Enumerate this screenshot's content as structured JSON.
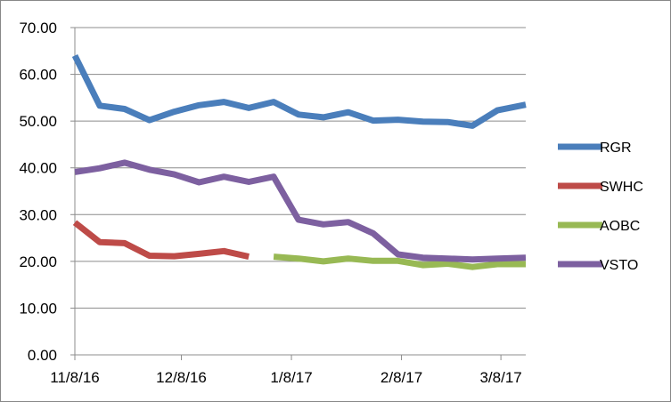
{
  "chart_data": {
    "type": "line",
    "title": "",
    "xlabel": "",
    "ylabel": "",
    "ylim": [
      0,
      70
    ],
    "y_ticks": [
      "0.00",
      "10.00",
      "20.00",
      "30.00",
      "40.00",
      "50.00",
      "60.00",
      "70.00"
    ],
    "x_tick_labels": [
      {
        "label": "11/8/16",
        "date": "2016-11-08"
      },
      {
        "label": "12/8/16",
        "date": "2016-12-08"
      },
      {
        "label": "1/8/17",
        "date": "2017-01-08"
      },
      {
        "label": "2/8/17",
        "date": "2017-02-08"
      },
      {
        "label": "3/8/17",
        "date": "2017-03-08"
      }
    ],
    "x_range": [
      "2016-11-08",
      "2017-03-15"
    ],
    "grid": "horizontal",
    "legend": "right",
    "series": [
      {
        "name": "RGR",
        "color": "#4a7ebb",
        "x": [
          "2016-11-08",
          "2016-11-15",
          "2016-11-22",
          "2016-11-29",
          "2016-12-06",
          "2016-12-13",
          "2016-12-20",
          "2016-12-27",
          "2017-01-03",
          "2017-01-10",
          "2017-01-17",
          "2017-01-24",
          "2017-01-31",
          "2017-02-07",
          "2017-02-14",
          "2017-02-21",
          "2017-02-28",
          "2017-03-07",
          "2017-03-15"
        ],
        "y": [
          64.0,
          53.3,
          52.6,
          50.2,
          52.0,
          53.4,
          54.1,
          52.8,
          54.1,
          51.4,
          50.8,
          51.9,
          50.1,
          50.3,
          49.9,
          49.8,
          49.0,
          52.3,
          53.5
        ]
      },
      {
        "name": "SWHC",
        "color": "#be4b48",
        "x": [
          "2016-11-08",
          "2016-11-15",
          "2016-11-22",
          "2016-11-29",
          "2016-12-06",
          "2016-12-13",
          "2016-12-20",
          "2016-12-27"
        ],
        "y": [
          28.3,
          24.1,
          23.9,
          21.2,
          21.1,
          21.6,
          22.2,
          21.0
        ]
      },
      {
        "name": "AOBC",
        "color": "#98b954",
        "x": [
          "2017-01-03",
          "2017-01-10",
          "2017-01-17",
          "2017-01-24",
          "2017-01-31",
          "2017-02-07",
          "2017-02-14",
          "2017-02-21",
          "2017-02-28",
          "2017-03-07",
          "2017-03-15"
        ],
        "y": [
          21.0,
          20.6,
          20.0,
          20.6,
          20.1,
          20.1,
          19.2,
          19.5,
          18.8,
          19.4,
          19.4
        ]
      },
      {
        "name": "VSTO",
        "color": "#7d60a0",
        "x": [
          "2016-11-08",
          "2016-11-15",
          "2016-11-22",
          "2016-11-29",
          "2016-12-06",
          "2016-12-13",
          "2016-12-20",
          "2016-12-27",
          "2017-01-03",
          "2017-01-10",
          "2017-01-17",
          "2017-01-24",
          "2017-01-31",
          "2017-02-07",
          "2017-02-14",
          "2017-02-21",
          "2017-02-28",
          "2017-03-07",
          "2017-03-15"
        ],
        "y": [
          39.1,
          39.9,
          41.1,
          39.6,
          38.6,
          36.9,
          38.1,
          37.0,
          38.1,
          28.9,
          27.9,
          28.4,
          26.0,
          21.5,
          20.8,
          20.6,
          20.4,
          20.6,
          20.8
        ]
      }
    ]
  }
}
